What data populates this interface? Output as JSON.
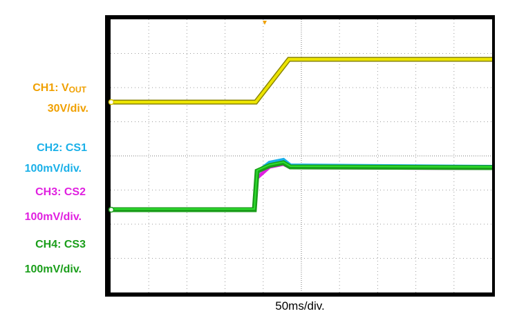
{
  "channels": [
    {
      "name": "CH1: V",
      "name_subscript": "OUT",
      "scale": "30V/div."
    },
    {
      "name": "CH2: CS1",
      "scale": "100mV/div."
    },
    {
      "name": "CH3: CS2",
      "scale": "100mV/div."
    },
    {
      "name": "CH4: CS3",
      "scale": "100mV/div."
    }
  ],
  "timebase": "50ms/div."
}
